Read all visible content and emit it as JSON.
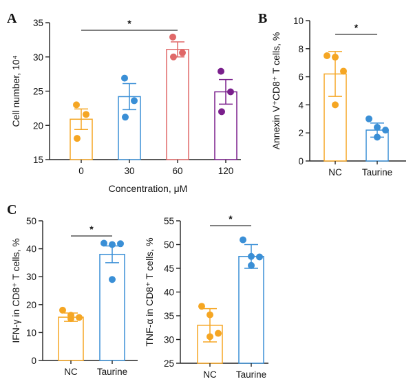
{
  "chart_data": [
    {
      "panel": "A",
      "type": "bar",
      "xlabel": "Concentration, μM",
      "ylabel": "Cell number, 10⁴",
      "ylim": [
        15,
        35
      ],
      "yticks": [
        15,
        20,
        25,
        30,
        35
      ],
      "categories": [
        "0",
        "30",
        "60",
        "120"
      ],
      "values": [
        20.9,
        24.2,
        31.1,
        24.9
      ],
      "errors": [
        1.5,
        1.9,
        1.1,
        1.8
      ],
      "points": [
        [
          23.0,
          21.6,
          18.1
        ],
        [
          26.9,
          23.6,
          21.2
        ],
        [
          32.9,
          30.6,
          30.0
        ],
        [
          27.9,
          24.9,
          22.0
        ]
      ],
      "colors": [
        "#f5a623",
        "#3a8fd6",
        "#e06868",
        "#7a1f8c"
      ],
      "significance": {
        "from": "0",
        "to": "60",
        "label": "*"
      }
    },
    {
      "panel": "B",
      "type": "bar",
      "xlabel": "",
      "ylabel": "Annexin V⁺CD8⁺ T cells, %",
      "ylim": [
        0,
        10
      ],
      "yticks": [
        0,
        2,
        4,
        6,
        8,
        10
      ],
      "categories": [
        "NC",
        "Taurine"
      ],
      "values": [
        6.2,
        2.2
      ],
      "errors": [
        1.6,
        0.5
      ],
      "points": [
        [
          7.5,
          7.4,
          6.4,
          4.0
        ],
        [
          3.0,
          2.4,
          2.2,
          1.7
        ]
      ],
      "colors": [
        "#f5a623",
        "#3a8fd6"
      ],
      "significance": {
        "from": "NC",
        "to": "Taurine",
        "label": "*"
      }
    },
    {
      "panel": "C",
      "type": "bar",
      "xlabel": "",
      "ylabel": "IFN-γ in CD8⁺ T cells, %",
      "ylim": [
        0,
        50
      ],
      "yticks": [
        0,
        10,
        20,
        30,
        40,
        50
      ],
      "categories": [
        "NC",
        "Taurine"
      ],
      "values": [
        15.5,
        38.0
      ],
      "errors": [
        1.5,
        3.0
      ],
      "points": [
        [
          18.0,
          16.2,
          15.4,
          15.0
        ],
        [
          42.0,
          41.5,
          41.8,
          29.0
        ]
      ],
      "colors": [
        "#f5a623",
        "#3a8fd6"
      ],
      "significance": {
        "from": "NC",
        "to": "Taurine",
        "label": "*"
      }
    },
    {
      "panel": "",
      "type": "bar",
      "xlabel": "",
      "ylabel": "TNF-α in CD8⁺ T cells, %",
      "ylim": [
        25,
        55
      ],
      "yticks": [
        25,
        30,
        35,
        40,
        45,
        50,
        55
      ],
      "categories": [
        "NC",
        "Taurine"
      ],
      "values": [
        33.0,
        47.5
      ],
      "errors": [
        3.5,
        2.5
      ],
      "points": [
        [
          37.0,
          35.2,
          31.3,
          30.6
        ],
        [
          51.0,
          47.5,
          47.4,
          45.6
        ]
      ],
      "colors": [
        "#f5a623",
        "#3a8fd6"
      ],
      "significance": {
        "from": "NC",
        "to": "Taurine",
        "label": "*"
      }
    }
  ]
}
